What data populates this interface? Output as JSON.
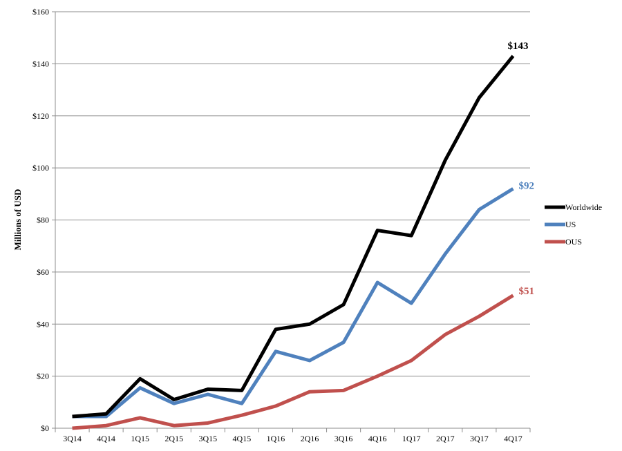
{
  "chart_data": {
    "type": "line",
    "title": "",
    "xlabel": "",
    "ylabel": "Millions of USD",
    "ylim": [
      0,
      160
    ],
    "yticks": [
      0,
      20,
      40,
      60,
      80,
      100,
      120,
      140,
      160
    ],
    "ytick_labels": [
      "$0",
      "$20",
      "$40",
      "$60",
      "$80",
      "$100",
      "$120",
      "$140",
      "$160"
    ],
    "grid": true,
    "legend_position": "right",
    "categories": [
      "3Q14",
      "4Q14",
      "1Q15",
      "2Q15",
      "3Q15",
      "4Q15",
      "1Q16",
      "2Q16",
      "3Q16",
      "4Q16",
      "1Q17",
      "2Q17",
      "3Q17",
      "4Q17"
    ],
    "series": [
      {
        "name": "Worldwide",
        "color": "#000000",
        "values": [
          4.5,
          5.5,
          19,
          11,
          15,
          14.5,
          38,
          40,
          47.5,
          76,
          74,
          103,
          127,
          143
        ],
        "end_label": "$143"
      },
      {
        "name": "US",
        "color": "#4f81bd",
        "values": [
          4.5,
          4.5,
          15.5,
          9.5,
          13,
          9.5,
          29.5,
          26,
          33,
          56,
          48,
          67,
          84,
          92
        ],
        "end_label": "$92"
      },
      {
        "name": "OUS",
        "color": "#c0504d",
        "values": [
          0,
          1,
          4,
          1,
          2,
          5,
          8.5,
          14,
          14.5,
          20,
          26,
          36,
          43,
          51
        ],
        "end_label": "$51"
      }
    ]
  }
}
